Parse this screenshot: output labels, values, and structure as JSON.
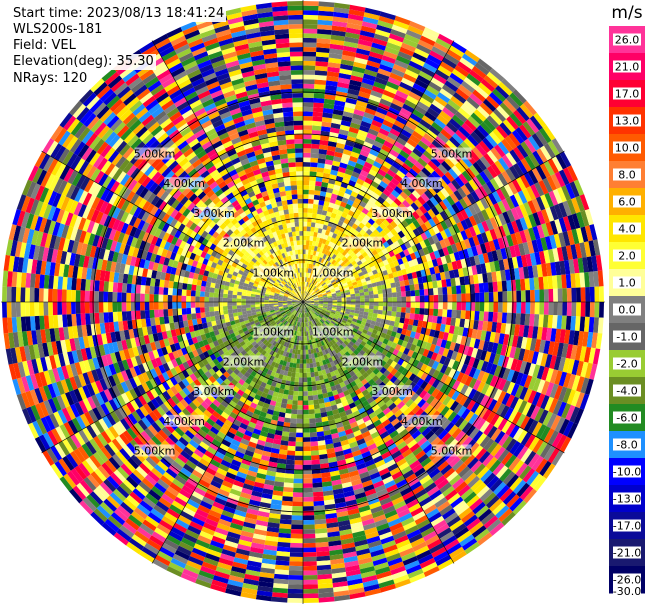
{
  "header": {
    "start_time": "Start time: 2023/08/13 18:41:24",
    "instrument": "WLS200s-181",
    "field": "Field: VEL",
    "elevation": "Elevation(deg): 35.30",
    "nrays": "NRays: 120"
  },
  "chart_data": {
    "type": "heatmap",
    "projection": "polar-ppi",
    "title": "",
    "colorbar": {
      "unit": "m/s",
      "ticks": [
        "26.0",
        "21.0",
        "17.0",
        "13.0",
        "10.0",
        "8.0",
        "6.0",
        "4.0",
        "2.0",
        "1.0",
        "0.0",
        "-1.0",
        "-2.0",
        "-4.0",
        "-6.0",
        "-8.0",
        "-10.0",
        "-13.0",
        "-17.0",
        "-21.0",
        "-26.0",
        "-30.0"
      ],
      "colors": [
        "#ff3399",
        "#ff0066",
        "#ff0033",
        "#ff3300",
        "#ff5a00",
        "#ff7f33",
        "#ffb000",
        "#ffe600",
        "#ffff33",
        "#ffff99",
        "#808080",
        "#666666",
        "#99cc33",
        "#6b8e23",
        "#228b22",
        "#1e90ff",
        "#0000ff",
        "#0000cc",
        "#0a0a99",
        "#191970",
        "#000066"
      ]
    },
    "range_rings_km": [
      {
        "label": "1.00km"
      },
      {
        "label": "2.00km"
      },
      {
        "label": "3.00km"
      },
      {
        "label": "4.00km"
      },
      {
        "label": "5.00km"
      }
    ],
    "near_field_pattern": {
      "north_sector": "positive (yellow/orange, 1 to 6 m/s)",
      "south_sector": "negative (olive/green, -1 to -6 m/s)",
      "outer_rings": "noise (full colour range)"
    }
  }
}
